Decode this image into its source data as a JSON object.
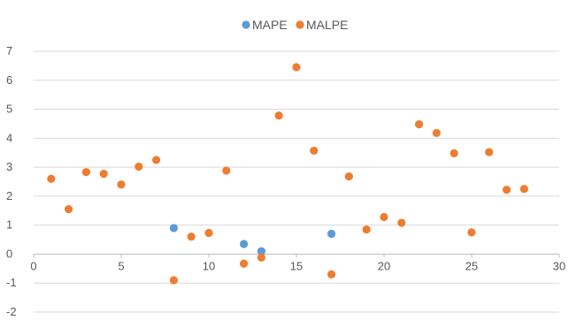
{
  "chart_data": {
    "type": "scatter",
    "title": "",
    "xlabel": "",
    "ylabel": "",
    "xlim": [
      0,
      30
    ],
    "ylim": [
      -2,
      7
    ],
    "x_ticks": [
      "0",
      "5",
      "10",
      "15",
      "20",
      "25",
      "30"
    ],
    "y_ticks": [
      "-2",
      "-1",
      "0",
      "1",
      "2",
      "3",
      "4",
      "5",
      "6",
      "7"
    ],
    "grid": "horizontal",
    "legend_position": "top",
    "series": [
      {
        "name": "MAPE",
        "color": "#5b9bd5",
        "points": [
          [
            8,
            0.9
          ],
          [
            12,
            0.35
          ],
          [
            13,
            0.1
          ],
          [
            17,
            0.7
          ]
        ]
      },
      {
        "name": "MALPE",
        "color": "#ed7d31",
        "points": [
          [
            1,
            2.6
          ],
          [
            2,
            1.55
          ],
          [
            3,
            2.83
          ],
          [
            4,
            2.77
          ],
          [
            5,
            2.4
          ],
          [
            6,
            3.02
          ],
          [
            7,
            3.25
          ],
          [
            8,
            -0.9
          ],
          [
            9,
            0.6
          ],
          [
            10,
            0.73
          ],
          [
            11,
            2.88
          ],
          [
            12,
            -0.33
          ],
          [
            13,
            -0.12
          ],
          [
            14,
            4.78
          ],
          [
            15,
            6.45
          ],
          [
            16,
            3.57
          ],
          [
            17,
            -0.7
          ],
          [
            18,
            2.68
          ],
          [
            19,
            0.85
          ],
          [
            20,
            1.28
          ],
          [
            21,
            1.08
          ],
          [
            22,
            4.48
          ],
          [
            23,
            4.18
          ],
          [
            24,
            3.48
          ],
          [
            25,
            0.75
          ],
          [
            26,
            3.52
          ],
          [
            27,
            2.22
          ],
          [
            28,
            2.25
          ]
        ]
      }
    ]
  }
}
